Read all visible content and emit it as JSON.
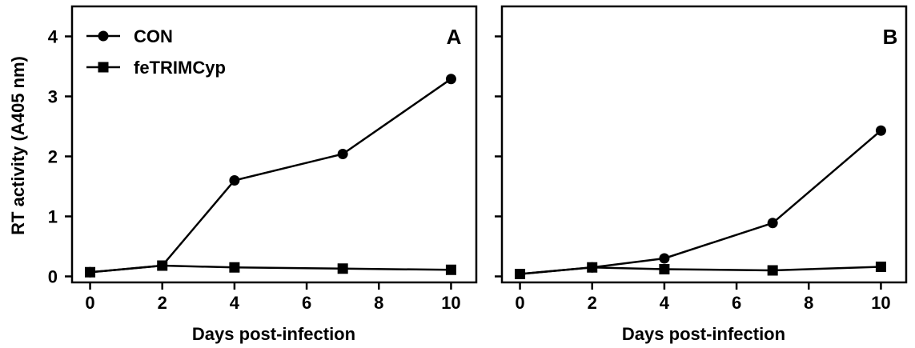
{
  "chart_data": [
    {
      "type": "line",
      "panel_label": "A",
      "x": [
        0,
        2,
        4,
        7,
        10
      ],
      "series": [
        {
          "name": "CON",
          "marker": "circle",
          "values": [
            0.07,
            0.18,
            1.6,
            2.04,
            3.29
          ]
        },
        {
          "name": "feTRIMCyp",
          "marker": "square",
          "values": [
            0.07,
            0.18,
            0.15,
            0.13,
            0.11
          ]
        }
      ],
      "xlabel": "Days post-infection",
      "ylabel": "RT activity (A405 nm)",
      "xticks": [
        "0",
        "2",
        "4",
        "6",
        "8",
        "10"
      ],
      "yticks": [
        "0",
        "1",
        "2",
        "3",
        "4"
      ],
      "xlim": [
        -0.5,
        10.7
      ],
      "ylim": [
        -0.1,
        4.5
      ],
      "legend": "top-left",
      "grid": false,
      "color": "#000000"
    },
    {
      "type": "line",
      "panel_label": "B",
      "x": [
        0,
        2,
        4,
        7,
        10
      ],
      "series": [
        {
          "name": "CON",
          "marker": "circle",
          "values": [
            0.04,
            0.15,
            0.3,
            0.89,
            2.43
          ]
        },
        {
          "name": "feTRIMCyp",
          "marker": "square",
          "values": [
            0.04,
            0.15,
            0.12,
            0.1,
            0.16
          ]
        }
      ],
      "xlabel": "Days post-infection",
      "ylabel": "",
      "xticks": [
        "0",
        "2",
        "4",
        "6",
        "8",
        "10"
      ],
      "yticks": [],
      "xlim": [
        -0.5,
        10.7
      ],
      "ylim": [
        -0.1,
        4.5
      ],
      "legend": "none",
      "grid": false,
      "color": "#000000"
    }
  ]
}
